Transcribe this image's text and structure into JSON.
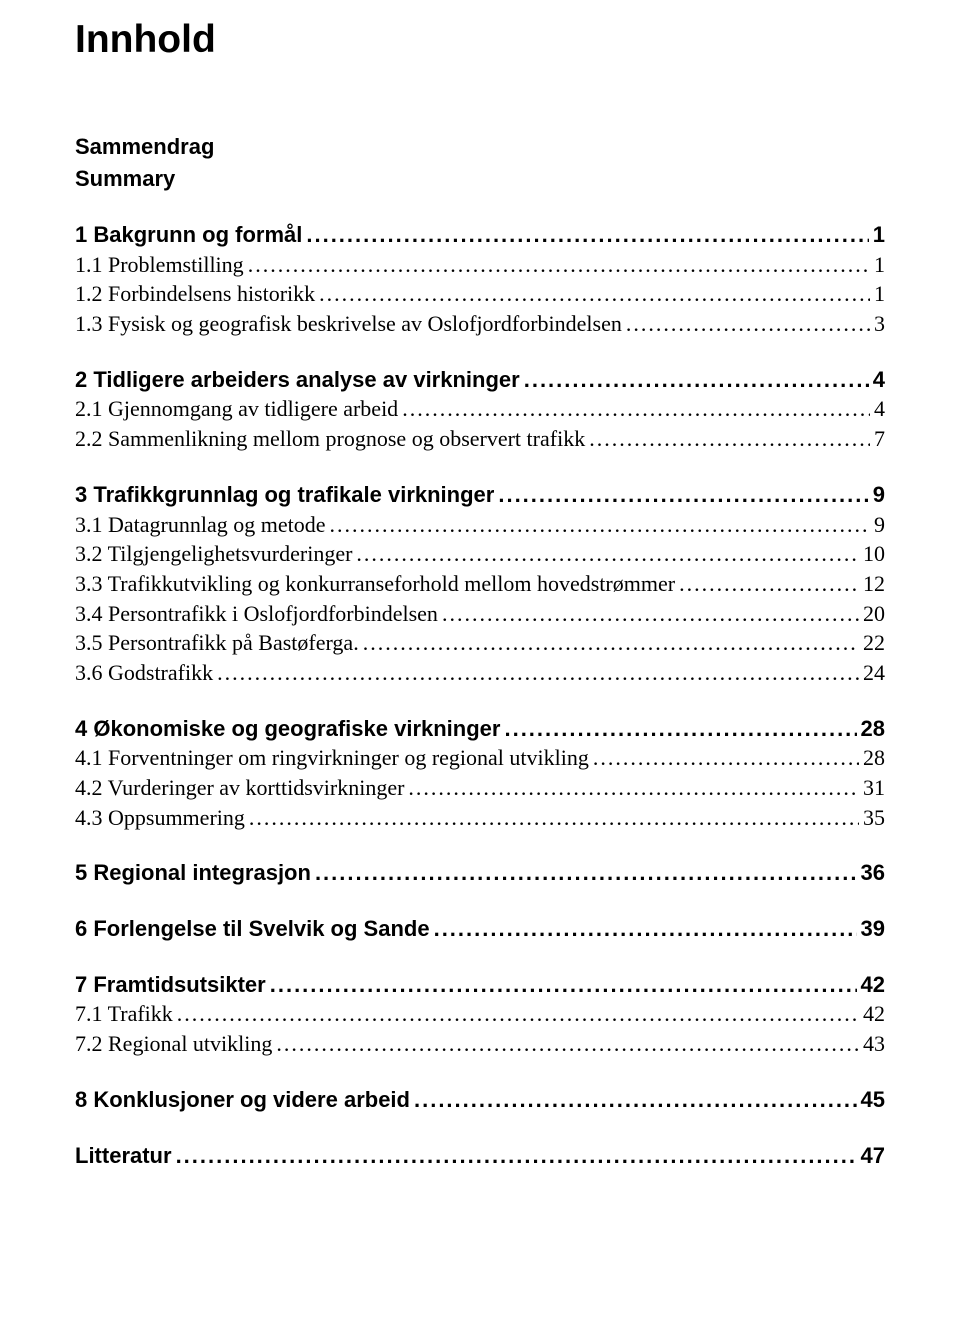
{
  "title": "Innhold",
  "preface": [
    "Sammendrag",
    "Summary"
  ],
  "sections": [
    {
      "head": {
        "label": "1 Bakgrunn og formål",
        "page": "1"
      },
      "subs": [
        {
          "label": "1.1 Problemstilling",
          "page": "1"
        },
        {
          "label": "1.2 Forbindelsens historikk",
          "page": "1"
        },
        {
          "label": "1.3 Fysisk og geografisk beskrivelse av Oslofjordforbindelsen",
          "page": "3"
        }
      ]
    },
    {
      "head": {
        "label": "2 Tidligere arbeiders analyse av virkninger",
        "page": "4"
      },
      "subs": [
        {
          "label": "2.1 Gjennomgang av tidligere arbeid",
          "page": "4"
        },
        {
          "label": "2.2 Sammenlikning mellom prognose og observert trafikk",
          "page": "7"
        }
      ]
    },
    {
      "head": {
        "label": "3 Trafikkgrunnlag og trafikale virkninger",
        "page": "9"
      },
      "subs": [
        {
          "label": "3.1 Datagrunnlag og metode",
          "page": "9"
        },
        {
          "label": "3.2 Tilgjengelighetsvurderinger",
          "page": "10"
        },
        {
          "label": "3.3 Trafikkutvikling og konkurranseforhold mellom hovedstrømmer",
          "page": "12"
        },
        {
          "label": "3.4 Persontrafikk i Oslofjordforbindelsen",
          "page": "20"
        },
        {
          "label": "3.5 Persontrafikk på Bastøferga.",
          "page": "22"
        },
        {
          "label": "3.6 Godstrafikk",
          "page": "24"
        }
      ]
    },
    {
      "head": {
        "label": "4 Økonomiske og geografiske virkninger",
        "page": "28"
      },
      "subs": [
        {
          "label": "4.1 Forventninger om ringvirkninger og regional utvikling",
          "page": "28"
        },
        {
          "label": "4.2 Vurderinger av korttidsvirkninger",
          "page": "31"
        },
        {
          "label": "4.3 Oppsummering",
          "page": "35"
        }
      ]
    },
    {
      "head": {
        "label": "5 Regional integrasjon",
        "page": "36"
      },
      "subs": []
    },
    {
      "head": {
        "label": "6 Forlengelse til Svelvik og Sande",
        "page": "39"
      },
      "subs": []
    },
    {
      "head": {
        "label": "7 Framtidsutsikter",
        "page": "42"
      },
      "subs": [
        {
          "label": "7.1 Trafikk",
          "page": "42"
        },
        {
          "label": "7.2 Regional utvikling",
          "page": "43"
        }
      ]
    },
    {
      "head": {
        "label": "8 Konklusjoner og videre arbeid",
        "page": "45"
      },
      "subs": []
    },
    {
      "head": {
        "label": "Litteratur",
        "page": "47"
      },
      "subs": []
    }
  ],
  "leader_dots": "............................................................................................................................................................................................................................"
}
